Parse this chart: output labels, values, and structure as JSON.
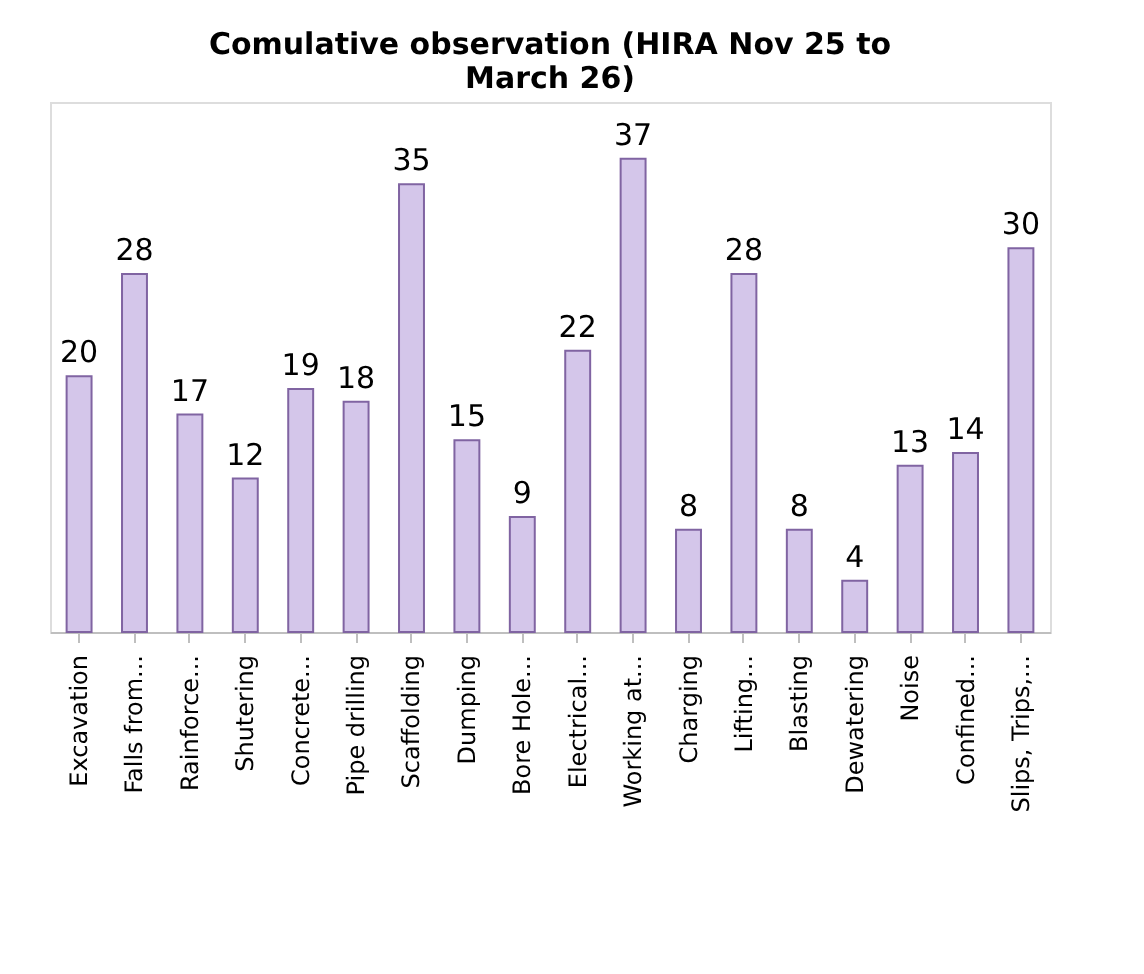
{
  "chart_data": {
    "type": "bar",
    "title": "Comulative observation (HIRA Nov 25 to March 26)",
    "categories": [
      "Excavation",
      "Falls from...",
      "Rainforce...",
      "Shutering",
      "Concrete...",
      "Pipe drilling",
      "Scaffolding",
      "Dumping",
      "Bore Hole...",
      "Electrical...",
      "Working at...",
      "Charging",
      "Lifting...",
      "Blasting",
      "Dewatering",
      "Noise",
      "Confined...",
      "Slips, Trips,..."
    ],
    "values": [
      20,
      28,
      17,
      12,
      19,
      18,
      35,
      15,
      9,
      22,
      37,
      8,
      28,
      8,
      4,
      13,
      14,
      30
    ],
    "color": "#d4c6ea",
    "data_labels": true
  }
}
